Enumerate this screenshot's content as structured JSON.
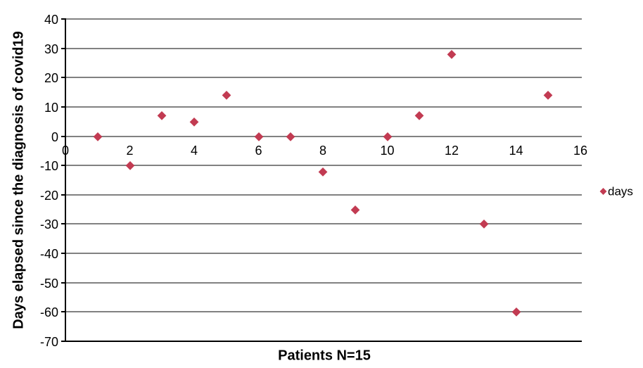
{
  "chart_data": {
    "type": "scatter",
    "title": "",
    "xlabel": "Patients N=15",
    "ylabel": "Days elapsed since the diagnosis of covid19",
    "xlim": [
      0,
      16
    ],
    "ylim": [
      -70,
      40
    ],
    "xticks": [
      0,
      2,
      4,
      6,
      8,
      10,
      12,
      14,
      16
    ],
    "yticks": [
      40,
      30,
      20,
      10,
      0,
      -10,
      -20,
      -30,
      -40,
      -50,
      -60,
      -70
    ],
    "grid": "horizontal",
    "legend_position": "right",
    "series": [
      {
        "name": "days",
        "marker": "diamond",
        "color": "#C23B52",
        "x": [
          1,
          2,
          3,
          4,
          5,
          6,
          7,
          8,
          9,
          10,
          11,
          12,
          13,
          14,
          15
        ],
        "y": [
          0,
          -10,
          7,
          5,
          14,
          0,
          0,
          -12,
          -25,
          0,
          7,
          28,
          -30,
          -60,
          14
        ]
      }
    ],
    "colors": {
      "marker": "#C23B52",
      "gridline": "#818181",
      "axis": "#000000",
      "background": "#FFFFFF",
      "text": "#000000"
    }
  }
}
